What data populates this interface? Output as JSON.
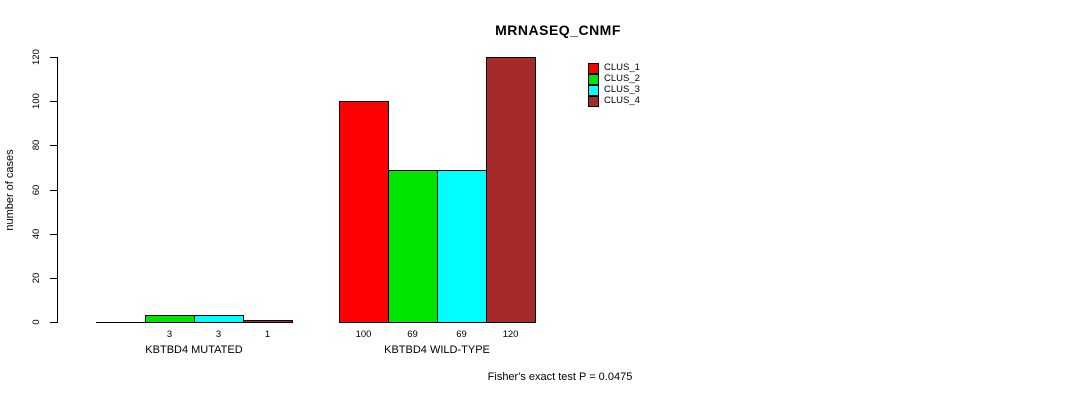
{
  "chart_data": {
    "type": "bar",
    "title": "MRNASEQ_CNMF",
    "ylabel": "number of cases",
    "xlabel": "",
    "categories": [
      "KBTBD4 MUTATED",
      "KBTBD4 WILD-TYPE"
    ],
    "series": [
      {
        "name": "CLUS_1",
        "color": "#FF0000",
        "values": [
          0,
          100
        ]
      },
      {
        "name": "CLUS_2",
        "color": "#00E400",
        "values": [
          3,
          69
        ]
      },
      {
        "name": "CLUS_3",
        "color": "#00FFFF",
        "values": [
          3,
          69
        ]
      },
      {
        "name": "CLUS_4",
        "color": "#A52A2A",
        "values": [
          1,
          120
        ]
      }
    ],
    "bar_value_labels": [
      [
        "",
        "3",
        "3",
        "1"
      ],
      [
        "100",
        "69",
        "69",
        "120"
      ]
    ],
    "yticks": [
      "0",
      "20",
      "40",
      "60",
      "80",
      "100",
      "120"
    ],
    "ylim": [
      0,
      120
    ],
    "grid": false,
    "legend_position": "top-right",
    "annotation": "Fisher's exact test P = 0.0475",
    "axis_color": "#000000",
    "background_color": "#FFFFFF"
  }
}
